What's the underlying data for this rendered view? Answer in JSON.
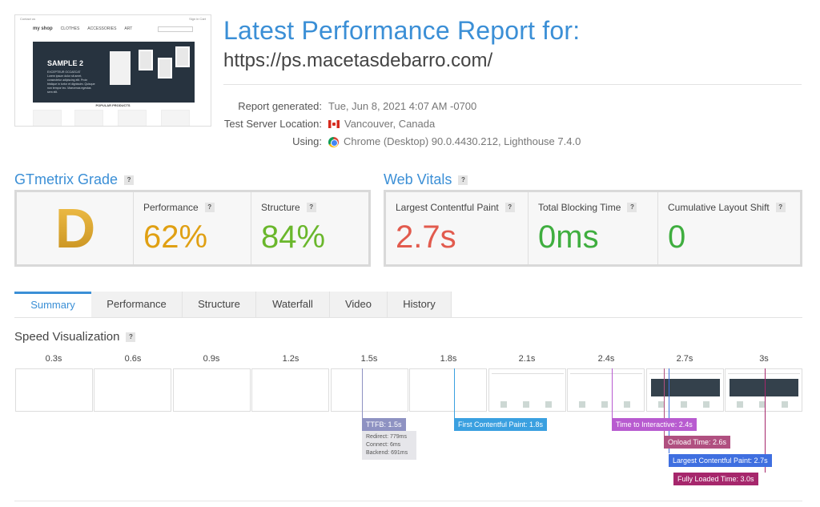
{
  "screenshot": {
    "top_left": "Contact us",
    "top_right": "Sign in  Cart",
    "logo": "my shop",
    "nav": [
      "CLOTHES",
      "ACCESSORIES",
      "ART"
    ],
    "hero_title": "SAMPLE 2",
    "hero_sub": "EXCEPTEUR OCCAECAT",
    "hero_text": "Lorem ipsum dolor sit amet, consectetur adipiscing elit. Proin tristique in tortor et dignissim. Quisque non tempor leo. Maecenas egestas sem elit.",
    "popular": "POPULAR PRODUCTS"
  },
  "report": {
    "title": "Latest Performance Report for:",
    "url": "https://ps.macetasdebarro.com/",
    "generated_label": "Report generated:",
    "generated_value": "Tue, Jun 8, 2021 4:07 AM -0700",
    "location_label": "Test Server Location:",
    "location_value": "Vancouver, Canada",
    "using_label": "Using:",
    "using_value": "Chrome (Desktop) 90.0.4430.212, Lighthouse 7.4.0"
  },
  "grade": {
    "title": "GTmetrix Grade",
    "letter": "D",
    "performance_label": "Performance",
    "performance_value": "62%",
    "structure_label": "Structure",
    "structure_value": "84%"
  },
  "vitals": {
    "title": "Web Vitals",
    "lcp_label": "Largest Contentful Paint",
    "lcp_value": "2.7s",
    "tbt_label": "Total Blocking Time",
    "tbt_value": "0ms",
    "cls_label": "Cumulative Layout Shift",
    "cls_value": "0"
  },
  "help_glyph": "?",
  "tabs": [
    "Summary",
    "Performance",
    "Structure",
    "Waterfall",
    "Video",
    "History"
  ],
  "speed": {
    "title": "Speed Visualization",
    "times": [
      "0.3s",
      "0.6s",
      "0.9s",
      "1.2s",
      "1.5s",
      "1.8s",
      "2.1s",
      "2.4s",
      "2.7s",
      "3s"
    ],
    "ttfb": "TTFB: 1.5s",
    "redirect": "Redirect: 779ms",
    "connect": "Connect: 6ms",
    "backend": "Backend: 691ms",
    "fcp": "First Contentful Paint: 1.8s",
    "tti": "Time to Interactive: 2.4s",
    "onload": "Onload Time: 2.6s",
    "lcp": "Largest Contentful Paint: 2.7s",
    "fully": "Fully Loaded Time: 3.0s"
  },
  "colors": {
    "accent": "#3b8fd6",
    "performance": "#e0a013",
    "structure": "#6ab72c",
    "lcp": "#e25b4e",
    "good": "#3fae3f",
    "ttfb": "#8e92c2",
    "fcp": "#3aa0e0",
    "tti": "#b85bd0",
    "onload": "#b05080",
    "lcp_marker": "#3f6fe0",
    "fully": "#a6276c"
  }
}
